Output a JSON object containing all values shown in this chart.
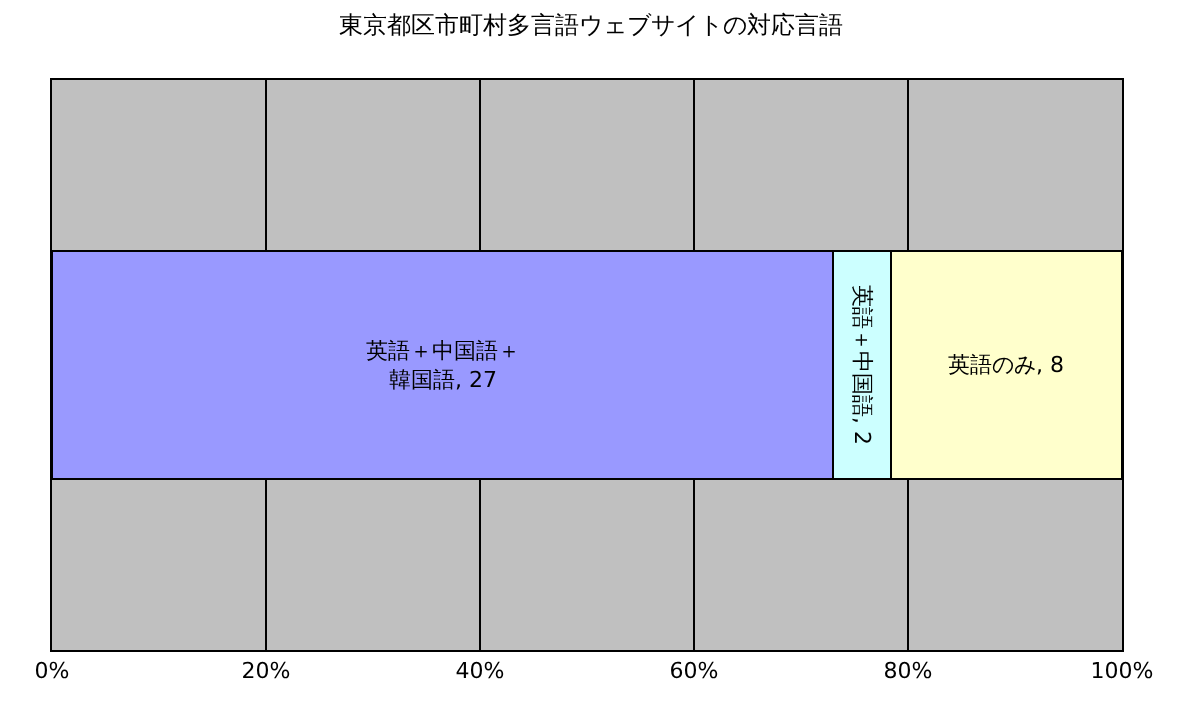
{
  "chart_data": {
    "type": "bar",
    "title": "東京都区市町村多言語ウェブサイトの対応言語",
    "orientation": "horizontal",
    "stacked": true,
    "categories": [
      null
    ],
    "series": [
      {
        "color": "#9999ff",
        "values": [
          73.0
        ]
      },
      {
        "color": "#ccffff",
        "values": [
          5.4
        ]
      },
      {
        "color": "#ffffcc",
        "values": [
          21.6
        ]
      }
    ],
    "annotations": [
      "英語＋中国語＋韓国語, 27",
      "英語＋中国語, 2",
      "英語のみ, 8"
    ],
    "xlim": [
      0,
      100
    ],
    "xticks": [
      {
        "value": 0,
        "label": "0%"
      },
      {
        "value": 20,
        "label": "20%"
      },
      {
        "value": 40,
        "label": "40%"
      },
      {
        "value": 60,
        "label": "60%"
      },
      {
        "value": 80,
        "label": "80%"
      },
      {
        "value": 100,
        "label": "100%"
      }
    ],
    "grid": "x",
    "legend": false
  }
}
